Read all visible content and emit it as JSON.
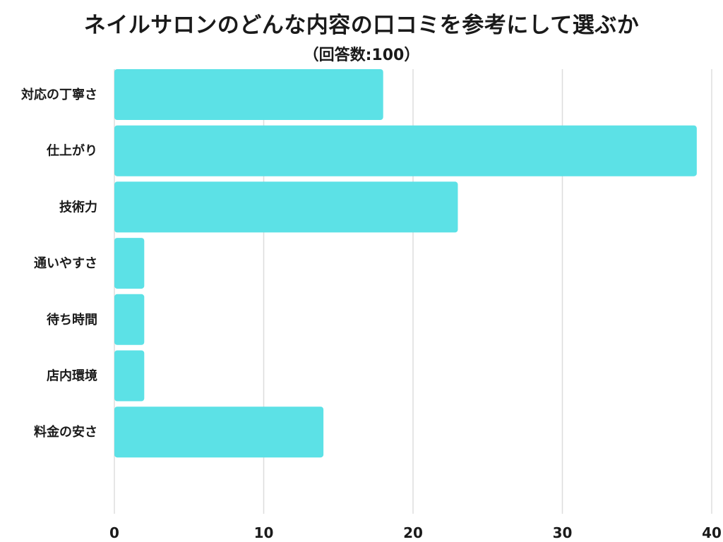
{
  "chart_data": {
    "type": "bar",
    "orientation": "horizontal",
    "title": "ネイルサロンのどんな内容の口コミを参考にして選ぶか",
    "subtitle": "（回答数:100）",
    "categories": [
      "対応の丁寧さ",
      "仕上がり",
      "技術力",
      "通いやすさ",
      "待ち時間",
      "店内環境",
      "料金の安さ"
    ],
    "values": [
      18,
      39,
      23,
      2,
      2,
      2,
      14
    ],
    "xlim": [
      0,
      40
    ],
    "xticks": [
      0,
      10,
      20,
      30,
      40
    ],
    "xlabel": "",
    "ylabel": "",
    "grid": "vertical",
    "legend": "none",
    "bar_color": "#5ce1e6",
    "grid_color": "#dddddd"
  }
}
